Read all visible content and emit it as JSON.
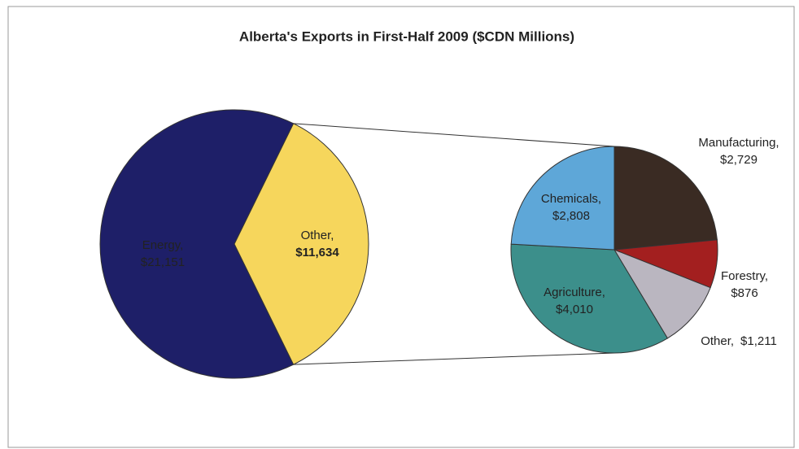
{
  "chart_data": {
    "type": "pie-of-pie",
    "title": "Alberta's Exports in First-Half 2009 ($CDN Millions)",
    "categories": [
      "Energy,",
      "Other,"
    ],
    "values": [
      21151,
      11634
    ],
    "value_labels": [
      "$21,151",
      "$11,634"
    ],
    "colors": [
      "#1e1f68",
      "#f6d65c"
    ],
    "breakout": {
      "categories": [
        "Manufacturing,",
        "Forestry,",
        "Other,",
        "Agriculture,",
        "Chemicals,"
      ],
      "values": [
        2729,
        876,
        1211,
        4010,
        2808
      ],
      "value_labels": [
        "$2,729",
        "$876",
        "$1,211",
        "$4,010",
        "$2,808"
      ],
      "colors": [
        "#3a2b23",
        "#a31f1f",
        "#bab6c0",
        "#3c8f8b",
        "#5ea7d8"
      ]
    }
  }
}
